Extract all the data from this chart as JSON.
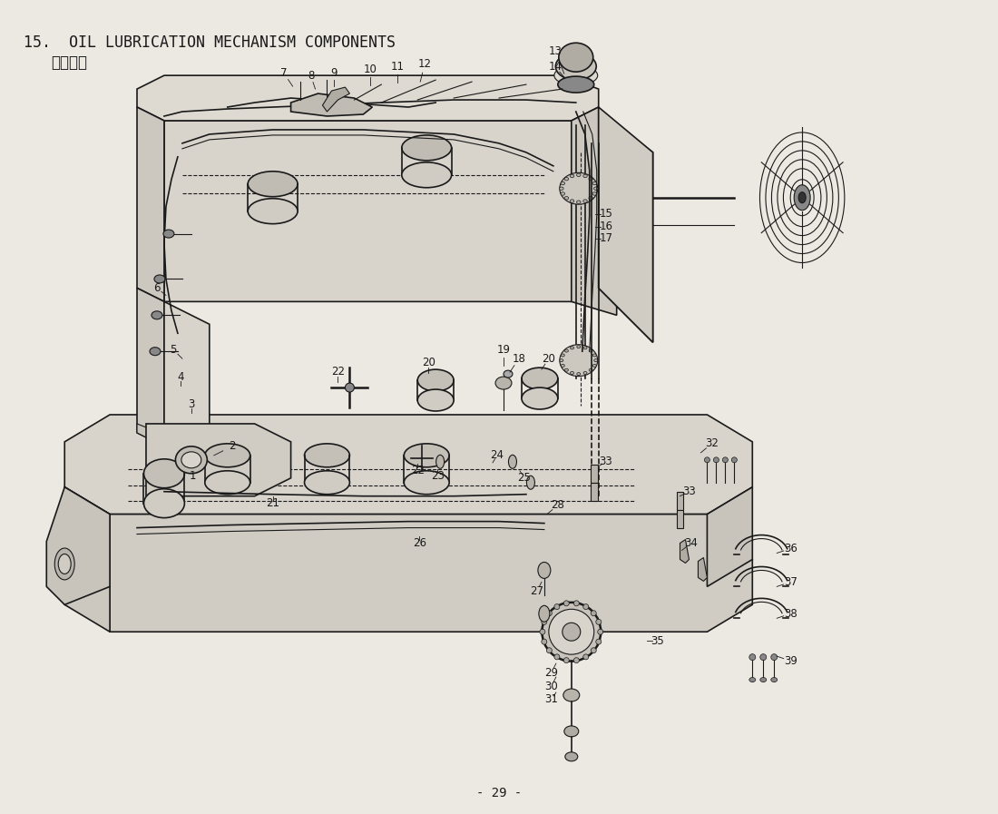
{
  "title_line1": "15.  OIL LUBRICATION MECHANISM COMPONENTS",
  "title_line2": "給油関係",
  "page_number": "- 29 -",
  "bg_color": "#e8e6e0",
  "paper_color": "#ece9e2",
  "line_color": "#1a1a1a",
  "title_fontsize": 12,
  "subtitle_fontsize": 12,
  "page_fontsize": 10,
  "label_fontsize": 8.5,
  "figwidth": 11.0,
  "figheight": 8.97,
  "dpi": 100
}
